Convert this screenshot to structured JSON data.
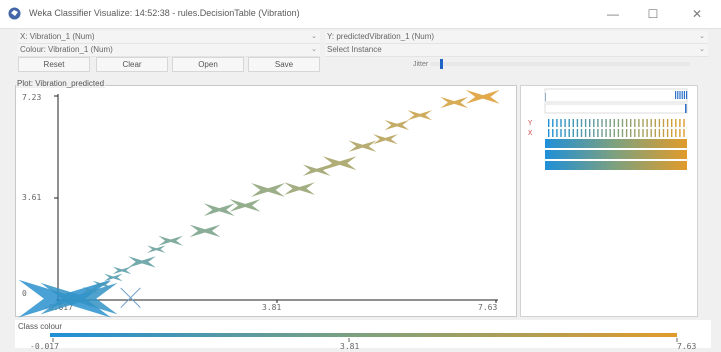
{
  "window": {
    "title": "Weka Classifier Visualize: 14:52:38 - rules.DecisionTable (Vibration)",
    "minimize": "—",
    "maximize": "☐",
    "close": "✕"
  },
  "controls": {
    "x_axis": "X: Vibration_1 (Num)",
    "y_axis": "Y: predictedVibration_1 (Num)",
    "colour": "Colour: Vibration_1 (Num)",
    "select_instance": "Select Instance",
    "reset": "Reset",
    "clear": "Clear",
    "open": "Open",
    "save": "Save",
    "jitter_label": "Jitter",
    "jitter_value": 0.02
  },
  "plot": {
    "title": "Plot: Vibration_predicted",
    "y_ticks": [
      "7.23",
      "3.61",
      "0"
    ],
    "x_ticks": [
      "-0.017",
      "3.81",
      "7.63"
    ]
  },
  "attr_panel": {
    "markers": [
      "Y",
      "X"
    ]
  },
  "class_colour": {
    "title": "Class colour",
    "ticks": [
      "-0.017",
      "3.81",
      "7.63"
    ],
    "gradient": [
      "#1f8fd8",
      "#7fa17d",
      "#e19b2b"
    ]
  },
  "chart_data": {
    "type": "scatter",
    "x_label": "Vibration_1",
    "y_label": "predictedVibration_1",
    "xlim": [
      -0.017,
      7.63
    ],
    "ylim": [
      0,
      7.23
    ],
    "points": [
      {
        "x": 0.1,
        "y": 0.05,
        "c": 0.05,
        "s": 3.0
      },
      {
        "x": 0.35,
        "y": 0.05,
        "c": 0.1,
        "s": 2.5
      },
      {
        "x": 1.25,
        "y": 0.08,
        "c": 0.15,
        "s": 1.4,
        "error": true
      },
      {
        "x": 0.55,
        "y": 0.35,
        "c": 0.16,
        "s": 0.5
      },
      {
        "x": 0.75,
        "y": 0.55,
        "c": 0.2,
        "s": 0.6
      },
      {
        "x": 0.95,
        "y": 0.8,
        "c": 0.24,
        "s": 0.6
      },
      {
        "x": 1.1,
        "y": 1.05,
        "c": 0.28,
        "s": 0.6
      },
      {
        "x": 1.45,
        "y": 1.35,
        "c": 0.32,
        "s": 0.9
      },
      {
        "x": 1.7,
        "y": 1.8,
        "c": 0.36,
        "s": 0.6
      },
      {
        "x": 1.95,
        "y": 2.1,
        "c": 0.4,
        "s": 0.8
      },
      {
        "x": 2.55,
        "y": 2.45,
        "c": 0.45,
        "s": 1.0
      },
      {
        "x": 2.8,
        "y": 3.2,
        "c": 0.48,
        "s": 1.0
      },
      {
        "x": 3.25,
        "y": 3.35,
        "c": 0.52,
        "s": 1.0
      },
      {
        "x": 3.65,
        "y": 3.9,
        "c": 0.56,
        "s": 1.1
      },
      {
        "x": 4.2,
        "y": 3.95,
        "c": 0.6,
        "s": 1.0
      },
      {
        "x": 4.5,
        "y": 4.6,
        "c": 0.64,
        "s": 0.9
      },
      {
        "x": 4.9,
        "y": 4.85,
        "c": 0.68,
        "s": 1.1
      },
      {
        "x": 5.3,
        "y": 5.45,
        "c": 0.72,
        "s": 0.9
      },
      {
        "x": 5.7,
        "y": 5.7,
        "c": 0.76,
        "s": 0.8
      },
      {
        "x": 5.9,
        "y": 6.2,
        "c": 0.8,
        "s": 0.8
      },
      {
        "x": 6.3,
        "y": 6.55,
        "c": 0.86,
        "s": 0.8
      },
      {
        "x": 6.9,
        "y": 7.0,
        "c": 0.92,
        "s": 0.9
      },
      {
        "x": 7.4,
        "y": 7.2,
        "c": 0.98,
        "s": 1.1
      }
    ]
  }
}
